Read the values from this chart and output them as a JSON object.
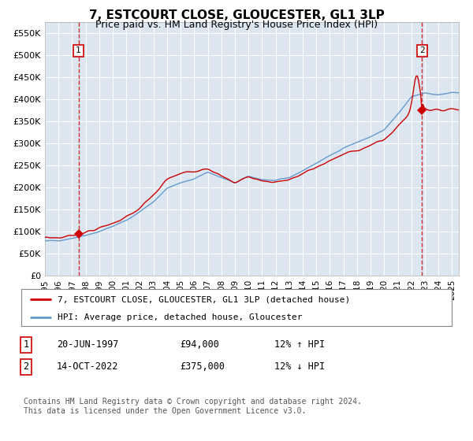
{
  "title": "7, ESTCOURT CLOSE, GLOUCESTER, GL1 3LP",
  "subtitle": "Price paid vs. HM Land Registry's House Price Index (HPI)",
  "ylim": [
    0,
    575000
  ],
  "yticks": [
    0,
    50000,
    100000,
    150000,
    200000,
    250000,
    300000,
    350000,
    400000,
    450000,
    500000,
    550000
  ],
  "ytick_labels": [
    "£0",
    "£50K",
    "£100K",
    "£150K",
    "£200K",
    "£250K",
    "£300K",
    "£350K",
    "£400K",
    "£450K",
    "£500K",
    "£550K"
  ],
  "xlim_start": 1995.0,
  "xlim_end": 2025.5,
  "xtick_years": [
    1995,
    1996,
    1997,
    1998,
    1999,
    2000,
    2001,
    2002,
    2003,
    2004,
    2005,
    2006,
    2007,
    2008,
    2009,
    2010,
    2011,
    2012,
    2013,
    2014,
    2015,
    2016,
    2017,
    2018,
    2019,
    2020,
    2021,
    2022,
    2023,
    2024,
    2025
  ],
  "sale1_x": 1997.47,
  "sale1_y": 94000,
  "sale2_x": 2022.79,
  "sale2_y": 375000,
  "property_line_color": "#cc0000",
  "hpi_line_color": "#6699cc",
  "plot_bg": "#dce6f1",
  "grid_color": "#ffffff",
  "legend_label1": "7, ESTCOURT CLOSE, GLOUCESTER, GL1 3LP (detached house)",
  "legend_label2": "HPI: Average price, detached house, Gloucester",
  "annotation1_date": "20-JUN-1997",
  "annotation1_price": "£94,000",
  "annotation1_hpi": "12% ↑ HPI",
  "annotation2_date": "14-OCT-2022",
  "annotation2_price": "£375,000",
  "annotation2_hpi": "12% ↓ HPI",
  "footer": "Contains HM Land Registry data © Crown copyright and database right 2024.\nThis data is licensed under the Open Government Licence v3.0."
}
